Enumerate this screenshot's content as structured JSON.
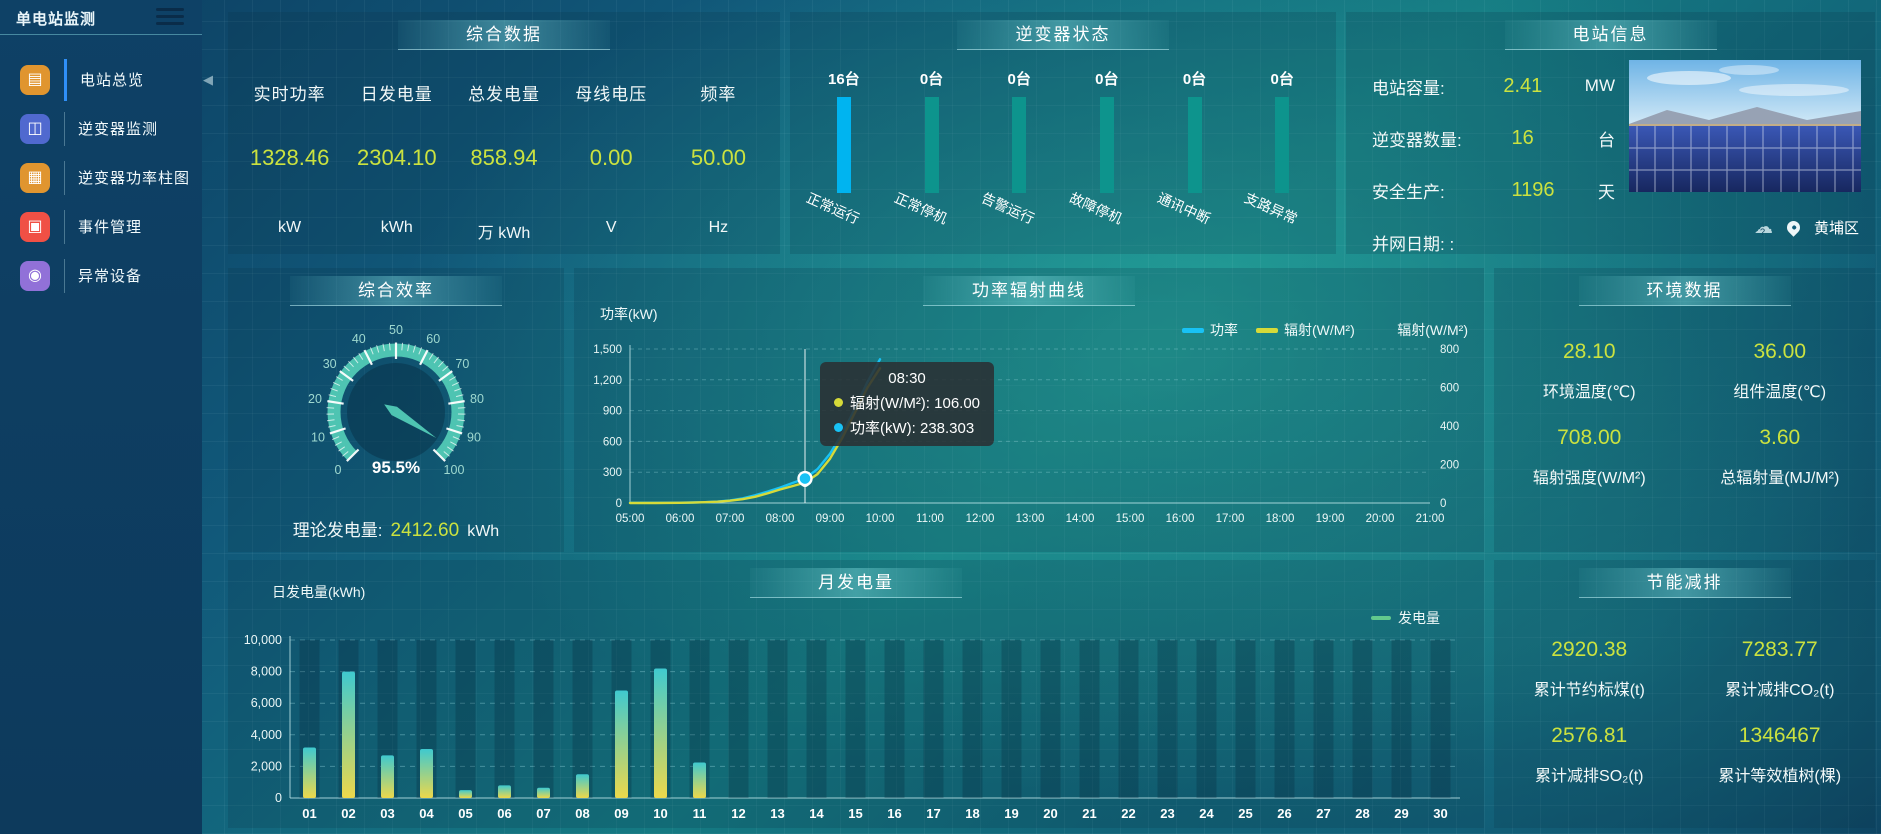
{
  "app": {
    "title": "单电站监测"
  },
  "sidebar": {
    "items": [
      {
        "label": "电站总览",
        "active": true
      },
      {
        "label": "逆变器监测",
        "active": false
      },
      {
        "label": "逆变器功率柱图",
        "active": false
      },
      {
        "label": "事件管理",
        "active": false
      },
      {
        "label": "异常设备",
        "active": false
      }
    ]
  },
  "summary": {
    "title": "综合数据",
    "stats": [
      {
        "label": "实时功率",
        "value": "1328.46",
        "unit": "kW"
      },
      {
        "label": "日发电量",
        "value": "2304.10",
        "unit": "kWh"
      },
      {
        "label": "总发电量",
        "value": "858.94",
        "unit": "万 kWh"
      },
      {
        "label": "母线电压",
        "value": "0.00",
        "unit": "V"
      },
      {
        "label": "频率",
        "value": "50.00",
        "unit": "Hz"
      }
    ]
  },
  "inverter": {
    "title": "逆变器状态",
    "statuses": [
      {
        "count": "16台",
        "label": "正常运行"
      },
      {
        "count": "0台",
        "label": "正常停机"
      },
      {
        "count": "0台",
        "label": "告警运行"
      },
      {
        "count": "0台",
        "label": "故障停机"
      },
      {
        "count": "0台",
        "label": "通讯中断"
      },
      {
        "count": "0台",
        "label": "支路异常"
      }
    ]
  },
  "station": {
    "title": "电站信息",
    "rows": [
      {
        "label": "电站容量:",
        "value": "2.41",
        "unit": "MW"
      },
      {
        "label": "逆变器数量:",
        "value": "16",
        "unit": "台"
      },
      {
        "label": "安全生产:",
        "value": "1196",
        "unit": "天"
      },
      {
        "label": "并网日期: :",
        "value": "",
        "unit": ""
      }
    ],
    "location": "黄埔区",
    "weather_unknown_mark": "?"
  },
  "efficiency": {
    "title": "综合效率",
    "value_label": "95.5%",
    "theory_label": "理论发电量:",
    "theory_value": "2412.60",
    "theory_unit": "kWh"
  },
  "line_panel": {
    "title": "功率辐射曲线",
    "ylabel": "功率(kW)",
    "y2label": "辐射(W/M²)",
    "legend": [
      "功率",
      "辐射(W/M²)"
    ],
    "tooltip": {
      "time": "08:30",
      "lines": [
        {
          "text": "辐射(W/M²): 106.00"
        },
        {
          "text": "功率(kW): 238.303"
        }
      ]
    }
  },
  "monthly_panel": {
    "title": "月发电量",
    "ylabel": "日发电量(kWh)",
    "legend": "发电量"
  },
  "environment": {
    "title": "环境数据",
    "items": [
      {
        "value": "28.10",
        "label": "环境温度(℃)"
      },
      {
        "value": "36.00",
        "label": "组件温度(℃)"
      },
      {
        "value": "708.00",
        "label": "辐射强度(W/M²)"
      },
      {
        "value": "3.60",
        "label": "总辐射量(MJ/M²)"
      }
    ]
  },
  "saving": {
    "title": "节能减排",
    "items": [
      {
        "value": "2920.38",
        "label": "累计节约标煤(t)"
      },
      {
        "value": "7283.77",
        "label": "累计减排CO₂(t)"
      },
      {
        "value": "2576.81",
        "label": "累计减排SO₂(t)"
      },
      {
        "value": "1346467",
        "label": "累计等效植树(棵)"
      }
    ]
  },
  "chart_data": [
    {
      "id": "inverter_status",
      "type": "bar",
      "categories": [
        "正常运行",
        "正常停机",
        "告警运行",
        "故障停机",
        "通讯中断",
        "支路异常"
      ],
      "values": [
        16,
        0,
        0,
        0,
        0,
        0
      ],
      "unit": "台",
      "highlight_color": "#00b4f0",
      "bar_color": "#0d948d"
    },
    {
      "id": "efficiency_gauge",
      "type": "gauge",
      "min": 0,
      "max": 100,
      "tick_step": 10,
      "value": 95.5,
      "color": "#4ec4b2"
    },
    {
      "id": "power_radiation",
      "type": "line",
      "title": "功率辐射曲线",
      "x_range": [
        5,
        21
      ],
      "left_axis": {
        "label": "功率(kW)",
        "range": [
          0,
          1500
        ],
        "step": 300
      },
      "right_axis": {
        "label": "辐射(W/M²)",
        "range": [
          0,
          800
        ],
        "step": 200
      },
      "series": [
        {
          "name": "功率",
          "color": "#18c2f5",
          "axis": "left",
          "x": [
            5,
            5.5,
            6,
            6.25,
            6.5,
            6.75,
            7,
            7.25,
            7.5,
            7.75,
            8,
            8.25,
            8.5,
            8.75,
            9,
            9.25,
            9.5,
            9.75,
            10
          ],
          "y": [
            2,
            2,
            3,
            5,
            8,
            14,
            25,
            45,
            75,
            110,
            150,
            195,
            238.3,
            330,
            480,
            680,
            920,
            1180,
            1400
          ]
        },
        {
          "name": "辐射(W/M²)",
          "color": "#d6da39",
          "axis": "right",
          "x": [
            5,
            5.5,
            6,
            6.25,
            6.5,
            6.75,
            7,
            7.25,
            7.5,
            7.75,
            8,
            8.25,
            8.5,
            8.75,
            9,
            9.25,
            9.5,
            9.75,
            10
          ],
          "y": [
            0,
            0,
            1,
            2,
            4,
            7,
            12,
            20,
            32,
            50,
            70,
            88,
            106,
            150,
            230,
            340,
            470,
            600,
            700
          ]
        }
      ],
      "hover": {
        "x": 8.5,
        "time": "08:30",
        "power": 238.303,
        "radiation": 106.0
      },
      "grid": true,
      "legend_position": "top-right"
    },
    {
      "id": "monthly_energy",
      "type": "bar",
      "title": "月发电量",
      "ylabel": "日发电量(kWh)",
      "legend": "发电量",
      "categories": [
        "01",
        "02",
        "03",
        "04",
        "05",
        "06",
        "07",
        "08",
        "09",
        "10",
        "11",
        "12",
        "13",
        "14",
        "15",
        "16",
        "17",
        "18",
        "19",
        "20",
        "21",
        "22",
        "23",
        "24",
        "25",
        "26",
        "27",
        "28",
        "29",
        "30"
      ],
      "values": [
        3200,
        8000,
        2700,
        3100,
        500,
        800,
        650,
        1500,
        6800,
        8200,
        2250,
        0,
        0,
        0,
        0,
        0,
        0,
        0,
        0,
        0,
        0,
        0,
        0,
        0,
        0,
        0,
        0,
        0,
        0,
        0
      ],
      "ylim": [
        0,
        10000
      ],
      "ystep": 2000,
      "bar_gradient": [
        "#3fc9cf",
        "#ecd84b"
      ]
    }
  ]
}
